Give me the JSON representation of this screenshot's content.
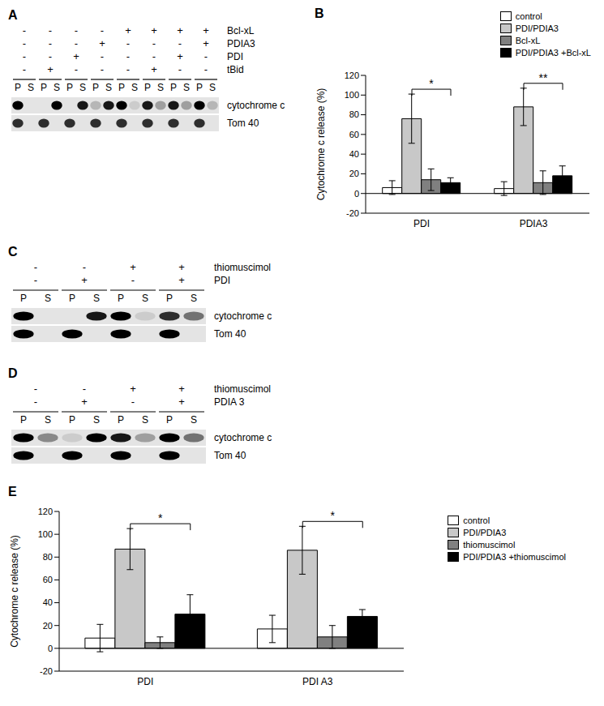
{
  "blots": [
    {
      "panel": "A",
      "conditions": [
        {
          "name": "Bcl-xL",
          "signs": [
            "-",
            "-",
            "-",
            "-",
            "+",
            "+",
            "+",
            "+"
          ]
        },
        {
          "name": "PDIA3",
          "signs": [
            "-",
            "-",
            "-",
            "+",
            "-",
            "-",
            "-",
            "+"
          ]
        },
        {
          "name": "PDI",
          "signs": [
            "-",
            "-",
            "+",
            "-",
            "-",
            "-",
            "+",
            "-"
          ]
        },
        {
          "name": "tBid",
          "signs": [
            "-",
            "+",
            "-",
            "-",
            "-",
            "+",
            "-",
            "-"
          ]
        }
      ],
      "lanes": [
        "P",
        "S"
      ],
      "bands": [
        {
          "name": "cytochrome c",
          "intensity": [
            1,
            0,
            0,
            1,
            0,
            0.9,
            0.2,
            0.9,
            1,
            0.1,
            0.9,
            0.3,
            0.9,
            0.3,
            1,
            0.2
          ]
        },
        {
          "name": "Tom 40",
          "intensity": [
            0.8,
            0,
            0.8,
            0,
            0.8,
            0,
            0.8,
            0,
            0.8,
            0,
            0.8,
            0,
            0.8,
            0,
            0.8,
            0
          ]
        }
      ]
    },
    {
      "panel": "C",
      "conditions": [
        {
          "name": "thiomuscimol",
          "signs": [
            "-",
            "-",
            "+",
            "+"
          ]
        },
        {
          "name": "PDI",
          "signs": [
            "-",
            "+",
            "-",
            "+"
          ]
        }
      ],
      "lanes": [
        "P",
        "S"
      ],
      "bands": [
        {
          "name": "cytochrome c",
          "intensity": [
            1,
            0,
            0,
            0.9,
            1,
            0.1,
            0.8,
            0.5
          ]
        },
        {
          "name": "Tom 40",
          "intensity": [
            1,
            0,
            1,
            0,
            1,
            0,
            1,
            0
          ]
        }
      ]
    },
    {
      "panel": "D",
      "conditions": [
        {
          "name": "thiomuscimol",
          "signs": [
            "-",
            "-",
            "+",
            "+"
          ]
        },
        {
          "name": "PDIA 3",
          "signs": [
            "-",
            "+",
            "-",
            "+"
          ]
        }
      ],
      "lanes": [
        "P",
        "S"
      ],
      "bands": [
        {
          "name": "cytochrome c",
          "intensity": [
            1,
            0.4,
            0.1,
            1,
            0.9,
            0.3,
            1,
            0.5
          ]
        },
        {
          "name": "Tom 40",
          "intensity": [
            1,
            0,
            1,
            0,
            1,
            0,
            1,
            0
          ]
        }
      ]
    }
  ],
  "chart_data": [
    {
      "panel": "B",
      "type": "bar",
      "y_label": "Cytochrome c release (%)",
      "categories": [
        "PDI",
        "PDIA3"
      ],
      "ylim": [
        -20,
        120
      ],
      "yticks": [
        -20,
        0,
        20,
        40,
        60,
        80,
        100,
        120
      ],
      "legend": "upper right",
      "series": [
        {
          "name": "control",
          "color": "#ffffff",
          "values": [
            6,
            5
          ],
          "errors": [
            7,
            7
          ]
        },
        {
          "name": "PDI/PDIA3",
          "color": "#c8c8c8",
          "values": [
            76,
            88
          ],
          "errors": [
            25,
            19
          ]
        },
        {
          "name": "Bcl-xL",
          "color": "#808080",
          "values": [
            14,
            11
          ],
          "errors": [
            11,
            12
          ]
        },
        {
          "name": "PDI/PDIA3 +Bcl-xL",
          "color": "#000000",
          "values": [
            11,
            18
          ],
          "errors": [
            5,
            10
          ]
        }
      ],
      "significance": [
        {
          "category": "PDI",
          "from": "PDI/PDIA3",
          "to": "PDI/PDIA3 +Bcl-xL",
          "label": "*"
        },
        {
          "category": "PDIA3",
          "from": "PDI/PDIA3",
          "to": "PDI/PDIA3 +Bcl-xL",
          "label": "**"
        }
      ]
    },
    {
      "panel": "E",
      "type": "bar",
      "y_label": "Cytochrome c release (%)",
      "categories": [
        "PDI",
        "PDI A3"
      ],
      "ylim": [
        -20,
        120
      ],
      "yticks": [
        -20,
        0,
        20,
        40,
        60,
        80,
        100,
        120
      ],
      "legend": "right",
      "series": [
        {
          "name": "control",
          "color": "#ffffff",
          "values": [
            9,
            17
          ],
          "errors": [
            12,
            12
          ]
        },
        {
          "name": "PDI/PDIA3",
          "color": "#c8c8c8",
          "values": [
            87,
            86
          ],
          "errors": [
            18,
            21
          ]
        },
        {
          "name": "thiomuscimol",
          "color": "#808080",
          "values": [
            5,
            10
          ],
          "errors": [
            5,
            10
          ]
        },
        {
          "name": "PDI/PDIA3 +thiomuscimol",
          "color": "#000000",
          "values": [
            30,
            28
          ],
          "errors": [
            17,
            6
          ]
        }
      ],
      "significance": [
        {
          "category": "PDI",
          "from": "PDI/PDIA3",
          "to": "PDI/PDIA3 +thiomuscimol",
          "label": "*"
        },
        {
          "category": "PDI A3",
          "from": "PDI/PDIA3",
          "to": "PDI/PDIA3 +thiomuscimol",
          "label": "*"
        }
      ]
    }
  ]
}
